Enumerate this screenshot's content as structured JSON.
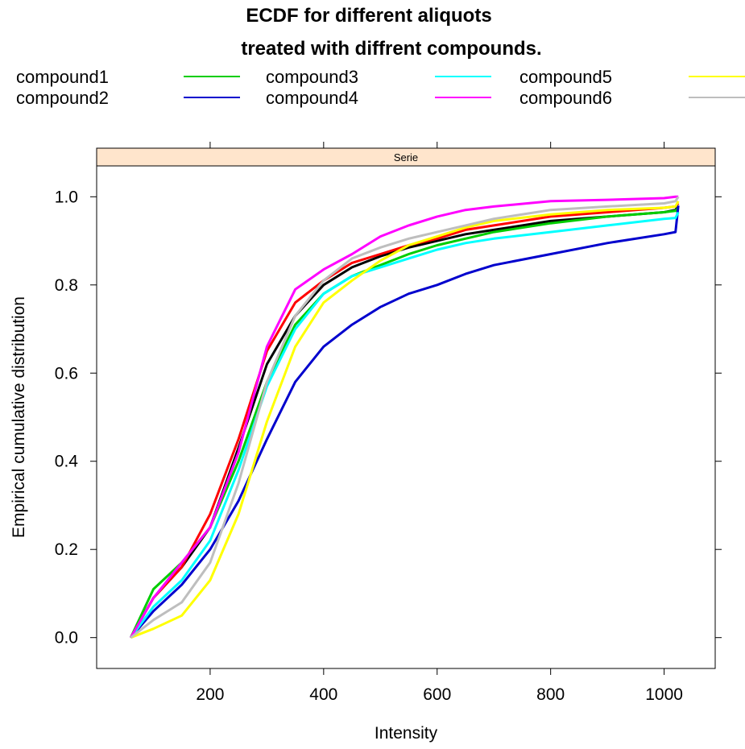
{
  "chart_data": {
    "type": "line",
    "title_lines": [
      "ECDF for different aliquots",
      "treated with diffrent compounds."
    ],
    "strip_label": "Serie",
    "xlabel": "Intensity",
    "ylabel": "Empirical cumulative distribution",
    "xlim": [
      0,
      1090
    ],
    "ylim": [
      -0.07,
      1.07
    ],
    "x_ticks": [
      200,
      400,
      600,
      800,
      1000
    ],
    "x_tick_labels": [
      "200",
      "400",
      "600",
      "800",
      "1000"
    ],
    "y_ticks": [
      0.0,
      0.2,
      0.4,
      0.6,
      0.8,
      1.0
    ],
    "y_tick_labels": [
      "0.0",
      "0.2",
      "0.4",
      "0.6",
      "0.8",
      "1.0"
    ],
    "grid": false,
    "legend_position": "top",
    "legend_entries": [
      {
        "label": "compound1",
        "color": "#00cd00"
      },
      {
        "label": "compound2",
        "color": "#0000cd"
      },
      {
        "label": "compound3",
        "color": "#00ffff"
      },
      {
        "label": "compound4",
        "color": "#ff00ff"
      },
      {
        "label": "compound5",
        "color": "#ffff00"
      },
      {
        "label": "compound6",
        "color": "#bebebe"
      }
    ],
    "series": [
      {
        "color": "#000000",
        "x": [
          60,
          100,
          150,
          200,
          250,
          300,
          350,
          400,
          450,
          500,
          550,
          600,
          650,
          700,
          800,
          900,
          1000,
          1020,
          1025
        ],
        "y": [
          0,
          0.09,
          0.16,
          0.25,
          0.43,
          0.62,
          0.73,
          0.8,
          0.84,
          0.865,
          0.885,
          0.9,
          0.915,
          0.925,
          0.945,
          0.955,
          0.965,
          0.97,
          0.98
        ]
      },
      {
        "color": "#ff0000",
        "x": [
          60,
          100,
          150,
          200,
          250,
          300,
          350,
          400,
          450,
          500,
          550,
          600,
          650,
          700,
          800,
          900,
          1000,
          1020,
          1025
        ],
        "y": [
          0,
          0.09,
          0.16,
          0.28,
          0.45,
          0.65,
          0.76,
          0.81,
          0.85,
          0.87,
          0.89,
          0.905,
          0.925,
          0.935,
          0.955,
          0.965,
          0.975,
          0.978,
          0.985
        ]
      },
      {
        "color": "#00cd00",
        "x": [
          60,
          100,
          150,
          200,
          250,
          300,
          350,
          400,
          450,
          500,
          550,
          600,
          650,
          700,
          800,
          900,
          1000,
          1020,
          1025
        ],
        "y": [
          0,
          0.11,
          0.17,
          0.25,
          0.4,
          0.58,
          0.71,
          0.78,
          0.82,
          0.845,
          0.87,
          0.89,
          0.905,
          0.92,
          0.94,
          0.955,
          0.965,
          0.968,
          0.975
        ]
      },
      {
        "color": "#0000cd",
        "x": [
          60,
          100,
          150,
          200,
          250,
          300,
          350,
          400,
          450,
          500,
          550,
          600,
          650,
          700,
          800,
          900,
          1000,
          1020,
          1025
        ],
        "y": [
          0,
          0.06,
          0.12,
          0.2,
          0.31,
          0.45,
          0.58,
          0.66,
          0.71,
          0.75,
          0.78,
          0.8,
          0.825,
          0.845,
          0.87,
          0.895,
          0.915,
          0.92,
          0.98
        ]
      },
      {
        "color": "#00ffff",
        "x": [
          60,
          100,
          150,
          200,
          250,
          300,
          350,
          400,
          450,
          500,
          550,
          600,
          650,
          700,
          800,
          900,
          1000,
          1020,
          1025
        ],
        "y": [
          0,
          0.07,
          0.13,
          0.22,
          0.38,
          0.57,
          0.7,
          0.78,
          0.82,
          0.84,
          0.86,
          0.88,
          0.895,
          0.905,
          0.92,
          0.935,
          0.95,
          0.952,
          0.965
        ]
      },
      {
        "color": "#ff00ff",
        "x": [
          60,
          100,
          150,
          200,
          250,
          300,
          350,
          400,
          450,
          500,
          550,
          600,
          650,
          700,
          800,
          900,
          1000,
          1020,
          1025
        ],
        "y": [
          0,
          0.09,
          0.17,
          0.25,
          0.42,
          0.66,
          0.79,
          0.835,
          0.87,
          0.91,
          0.935,
          0.955,
          0.97,
          0.978,
          0.99,
          0.993,
          0.997,
          1.0,
          1.0
        ]
      },
      {
        "color": "#ffff00",
        "x": [
          60,
          100,
          150,
          200,
          250,
          300,
          350,
          400,
          450,
          500,
          550,
          600,
          650,
          700,
          800,
          900,
          1000,
          1020,
          1025
        ],
        "y": [
          0,
          0.02,
          0.05,
          0.13,
          0.28,
          0.49,
          0.66,
          0.76,
          0.81,
          0.855,
          0.89,
          0.91,
          0.93,
          0.945,
          0.96,
          0.97,
          0.975,
          0.978,
          0.99
        ]
      },
      {
        "color": "#bebebe",
        "x": [
          60,
          100,
          150,
          200,
          250,
          300,
          350,
          400,
          450,
          500,
          550,
          600,
          650,
          700,
          800,
          900,
          1000,
          1020,
          1025
        ],
        "y": [
          0,
          0.04,
          0.08,
          0.17,
          0.35,
          0.58,
          0.73,
          0.81,
          0.86,
          0.885,
          0.905,
          0.92,
          0.935,
          0.95,
          0.97,
          0.978,
          0.985,
          0.99,
          1.0
        ]
      }
    ]
  }
}
